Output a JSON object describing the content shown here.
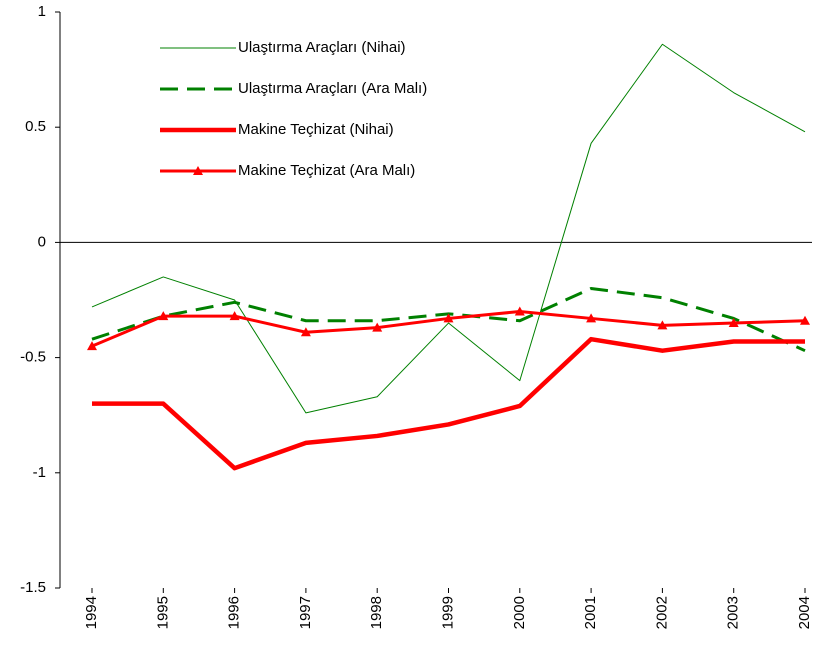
{
  "chart_data": {
    "type": "line",
    "categories": [
      "1994",
      "1995",
      "1996",
      "1997",
      "1998",
      "1999",
      "2000",
      "2001",
      "2002",
      "2003",
      "2004"
    ],
    "series": [
      {
        "name": "Ulaştırma Araçları (Nihai)",
        "color": "#008000",
        "weight": "thin",
        "dashed": false,
        "marker": null,
        "values": [
          -0.28,
          -0.15,
          -0.25,
          -0.74,
          -0.67,
          -0.35,
          -0.6,
          0.43,
          0.86,
          0.65,
          0.48
        ]
      },
      {
        "name": "Ulaştırma Araçları (Ara Malı)",
        "color": "#008000",
        "weight": "normal",
        "dashed": true,
        "marker": null,
        "values": [
          -0.42,
          -0.32,
          -0.26,
          -0.34,
          -0.34,
          -0.31,
          -0.34,
          -0.2,
          -0.24,
          -0.33,
          -0.47
        ]
      },
      {
        "name": "Makine Teçhizat (Nihai)",
        "color": "#ff0000",
        "weight": "thick",
        "dashed": false,
        "marker": null,
        "values": [
          -0.7,
          -0.7,
          -0.98,
          -0.87,
          -0.84,
          -0.79,
          -0.71,
          -0.42,
          -0.47,
          -0.43,
          -0.43
        ]
      },
      {
        "name": "Makine Teçhizat (Ara Malı)",
        "color": "#ff0000",
        "weight": "normal",
        "dashed": false,
        "marker": "triangle",
        "values": [
          -0.45,
          -0.32,
          -0.32,
          -0.39,
          -0.37,
          -0.33,
          -0.3,
          -0.33,
          -0.36,
          -0.35,
          -0.34
        ]
      }
    ],
    "ylim": [
      -1.5,
      1
    ],
    "yticks": [
      -1.5,
      -1,
      -0.5,
      0,
      0.5,
      1
    ],
    "grid": false,
    "legend": "upper left"
  }
}
